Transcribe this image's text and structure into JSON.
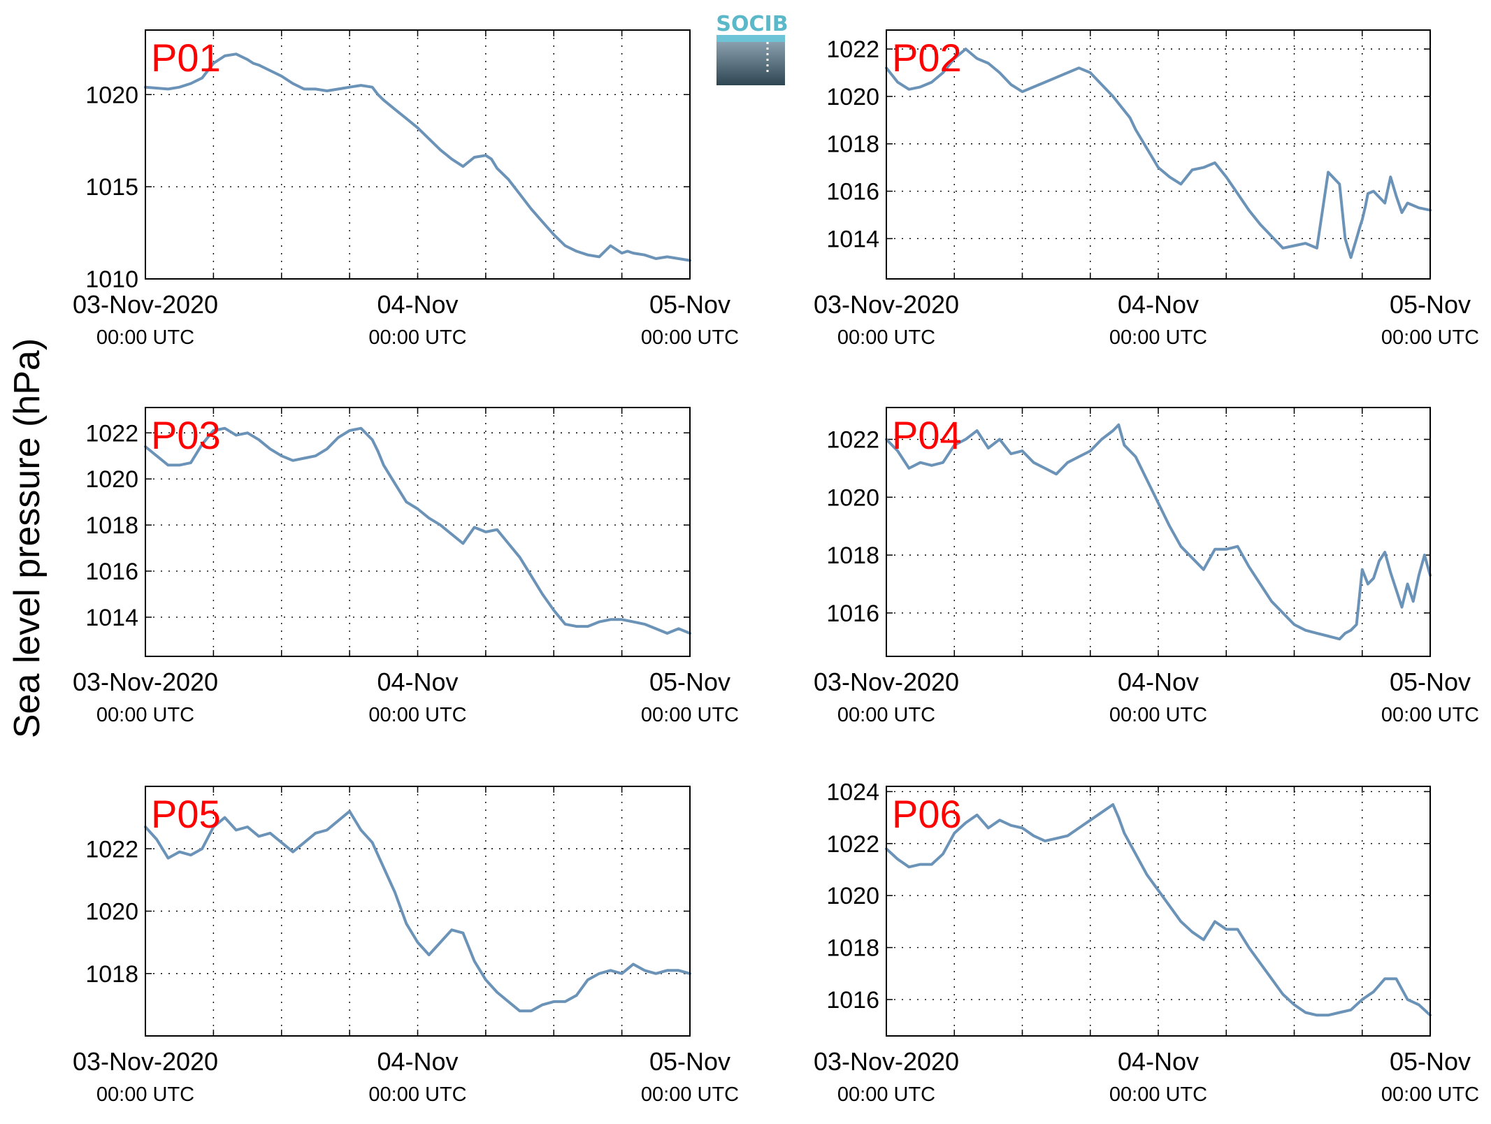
{
  "figure": {
    "ylabel": "Sea level pressure (hPa)",
    "logo_text": "SOCIB",
    "line_color": "#6b93b8",
    "label_color": "#ff0000"
  },
  "chart_data": [
    {
      "type": "line",
      "label": "P01",
      "x_unit": "hours since 03-Nov-2020 00:00 UTC",
      "xlim": [
        0,
        48
      ],
      "ylim": [
        1010,
        1023.5
      ],
      "yticks": [
        1010,
        1015,
        1020
      ],
      "xtick_labels": [
        [
          "03-Nov-2020",
          "00:00 UTC"
        ],
        [
          "04-Nov",
          "00:00 UTC"
        ],
        [
          "05-Nov",
          "00:00 UTC"
        ]
      ],
      "grid": true,
      "x": [
        0,
        2,
        3,
        4,
        5,
        6,
        7,
        8,
        9,
        9.5,
        10,
        11,
        12,
        13,
        14,
        15,
        16,
        17,
        18,
        19,
        20,
        20.5,
        21,
        22,
        23,
        24,
        25,
        26,
        27,
        28,
        29,
        30,
        30.5,
        31,
        32,
        33,
        34,
        35,
        36,
        37,
        38,
        39,
        40,
        41,
        42,
        42.5,
        43,
        44,
        45,
        46,
        47,
        48
      ],
      "y": [
        1020.4,
        1020.3,
        1020.4,
        1020.6,
        1020.9,
        1021.7,
        1022.1,
        1022.2,
        1021.9,
        1021.7,
        1021.6,
        1021.3,
        1021.0,
        1020.6,
        1020.3,
        1020.3,
        1020.2,
        1020.3,
        1020.4,
        1020.5,
        1020.4,
        1020.0,
        1019.7,
        1019.2,
        1018.7,
        1018.2,
        1017.6,
        1017.0,
        1016.5,
        1016.1,
        1016.6,
        1016.7,
        1016.5,
        1016.0,
        1015.4,
        1014.6,
        1013.8,
        1013.1,
        1012.4,
        1011.8,
        1011.5,
        1011.3,
        1011.2,
        1011.8,
        1011.4,
        1011.5,
        1011.4,
        1011.3,
        1011.1,
        1011.2,
        1011.1,
        1011.0
      ]
    },
    {
      "type": "line",
      "label": "P02",
      "x_unit": "hours since 03-Nov-2020 00:00 UTC",
      "xlim": [
        0,
        48
      ],
      "ylim": [
        1012.3,
        1022.8
      ],
      "yticks": [
        1014,
        1016,
        1018,
        1020,
        1022
      ],
      "xtick_labels": [
        [
          "03-Nov-2020",
          "00:00 UTC"
        ],
        [
          "04-Nov",
          "00:00 UTC"
        ],
        [
          "05-Nov",
          "00:00 UTC"
        ]
      ],
      "grid": true,
      "x": [
        0,
        1,
        2,
        3,
        4,
        5,
        6,
        7,
        8,
        9,
        10,
        11,
        12,
        13,
        14,
        15,
        16,
        17,
        18,
        19,
        20,
        21,
        21.5,
        22,
        23,
        24,
        25,
        26,
        27,
        28,
        29,
        30,
        31,
        32,
        33,
        34,
        35,
        36,
        37,
        38,
        39,
        40,
        40.5,
        41,
        41.5,
        41.8,
        42,
        42.3,
        42.5,
        43,
        44,
        44.5,
        45,
        45.5,
        46,
        46.5,
        47,
        48
      ],
      "y": [
        1021.2,
        1020.6,
        1020.3,
        1020.4,
        1020.6,
        1021.0,
        1021.6,
        1022.0,
        1021.6,
        1021.4,
        1021.0,
        1020.5,
        1020.2,
        1020.4,
        1020.6,
        1020.8,
        1021.0,
        1021.2,
        1021.0,
        1020.5,
        1020.0,
        1019.4,
        1019.1,
        1018.6,
        1017.8,
        1017.0,
        1016.6,
        1016.3,
        1016.9,
        1017.0,
        1017.2,
        1016.6,
        1015.9,
        1015.2,
        1014.6,
        1014.1,
        1013.6,
        1013.7,
        1013.8,
        1013.6,
        1016.8,
        1016.3,
        1014.0,
        1013.2,
        1014.0,
        1014.5,
        1014.8,
        1015.4,
        1015.9,
        1016.0,
        1015.5,
        1016.6,
        1015.8,
        1015.1,
        1015.5,
        1015.4,
        1015.3,
        1015.2
      ]
    },
    {
      "type": "line",
      "label": "P03",
      "x_unit": "hours since 03-Nov-2020 00:00 UTC",
      "xlim": [
        0,
        48
      ],
      "ylim": [
        1012.3,
        1023.1
      ],
      "yticks": [
        1014,
        1016,
        1018,
        1020,
        1022
      ],
      "xtick_labels": [
        [
          "03-Nov-2020",
          "00:00 UTC"
        ],
        [
          "04-Nov",
          "00:00 UTC"
        ],
        [
          "05-Nov",
          "00:00 UTC"
        ]
      ],
      "grid": true,
      "x": [
        0,
        1,
        2,
        3,
        4,
        5,
        6,
        7,
        8,
        9,
        10,
        11,
        12,
        13,
        14,
        15,
        16,
        17,
        18,
        19,
        20,
        20.5,
        21,
        22,
        23,
        24,
        25,
        26,
        27,
        28,
        29,
        30,
        31,
        32,
        33,
        34,
        35,
        36,
        37,
        38,
        39,
        40,
        41,
        42,
        43,
        44,
        45,
        46,
        47,
        48
      ],
      "y": [
        1021.4,
        1021.0,
        1020.6,
        1020.6,
        1020.7,
        1021.5,
        1022.1,
        1022.2,
        1021.9,
        1022.0,
        1021.7,
        1021.3,
        1021.0,
        1020.8,
        1020.9,
        1021.0,
        1021.3,
        1021.8,
        1022.1,
        1022.2,
        1021.7,
        1021.2,
        1020.6,
        1019.8,
        1019.0,
        1018.7,
        1018.3,
        1018.0,
        1017.6,
        1017.2,
        1017.9,
        1017.7,
        1017.8,
        1017.2,
        1016.6,
        1015.8,
        1015.0,
        1014.3,
        1013.7,
        1013.6,
        1013.6,
        1013.8,
        1013.9,
        1013.9,
        1013.8,
        1013.7,
        1013.5,
        1013.3,
        1013.5,
        1013.3
      ]
    },
    {
      "type": "line",
      "label": "P04",
      "x_unit": "hours since 03-Nov-2020 00:00 UTC",
      "xlim": [
        0,
        48
      ],
      "ylim": [
        1014.5,
        1023.1
      ],
      "yticks": [
        1016,
        1018,
        1020,
        1022
      ],
      "xtick_labels": [
        [
          "03-Nov-2020",
          "00:00 UTC"
        ],
        [
          "04-Nov",
          "00:00 UTC"
        ],
        [
          "05-Nov",
          "00:00 UTC"
        ]
      ],
      "grid": true,
      "x": [
        0,
        1,
        2,
        3,
        4,
        5,
        6,
        7,
        8,
        9,
        10,
        11,
        12,
        13,
        14,
        15,
        16,
        17,
        18,
        19,
        20,
        20.5,
        21,
        22,
        23,
        24,
        25,
        26,
        27,
        28,
        29,
        30,
        31,
        32,
        33,
        34,
        35,
        36,
        37,
        38,
        39,
        40,
        40.5,
        41,
        41.5,
        42,
        42.5,
        43,
        43.5,
        44,
        44.5,
        45,
        45.5,
        46,
        46.5,
        47,
        47.5,
        48
      ],
      "y": [
        1022.0,
        1021.6,
        1021.0,
        1021.2,
        1021.1,
        1021.2,
        1021.8,
        1022.0,
        1022.3,
        1021.7,
        1022.0,
        1021.5,
        1021.6,
        1021.2,
        1021.0,
        1020.8,
        1021.2,
        1021.4,
        1021.6,
        1022.0,
        1022.3,
        1022.5,
        1021.8,
        1021.4,
        1020.6,
        1019.8,
        1019.0,
        1018.3,
        1017.9,
        1017.5,
        1018.2,
        1018.2,
        1018.3,
        1017.6,
        1017.0,
        1016.4,
        1016.0,
        1015.6,
        1015.4,
        1015.3,
        1015.2,
        1015.1,
        1015.3,
        1015.4,
        1015.6,
        1017.5,
        1017.0,
        1017.2,
        1017.8,
        1018.1,
        1017.4,
        1016.8,
        1016.2,
        1017.0,
        1016.4,
        1017.3,
        1018.0,
        1017.3
      ]
    },
    {
      "type": "line",
      "label": "P05",
      "x_unit": "hours since 03-Nov-2020 00:00 UTC",
      "xlim": [
        0,
        48
      ],
      "ylim": [
        1016.0,
        1024.0
      ],
      "yticks": [
        1018,
        1020,
        1022
      ],
      "xtick_labels": [
        [
          "03-Nov-2020",
          "00:00 UTC"
        ],
        [
          "04-Nov",
          "00:00 UTC"
        ],
        [
          "05-Nov",
          "00:00 UTC"
        ]
      ],
      "grid": true,
      "x": [
        0,
        1,
        2,
        3,
        4,
        5,
        6,
        7,
        8,
        9,
        10,
        11,
        12,
        13,
        14,
        15,
        16,
        17,
        18,
        19,
        20,
        21,
        22,
        23,
        24,
        25,
        26,
        27,
        28,
        29,
        30,
        31,
        32,
        33,
        34,
        35,
        36,
        37,
        38,
        39,
        40,
        41,
        42,
        43,
        44,
        45,
        46,
        47,
        48
      ],
      "y": [
        1022.7,
        1022.3,
        1021.7,
        1021.9,
        1021.8,
        1022.0,
        1022.7,
        1023.0,
        1022.6,
        1022.7,
        1022.4,
        1022.5,
        1022.2,
        1021.9,
        1022.2,
        1022.5,
        1022.6,
        1022.9,
        1023.2,
        1022.6,
        1022.2,
        1021.4,
        1020.6,
        1019.6,
        1019.0,
        1018.6,
        1019.0,
        1019.4,
        1019.3,
        1018.4,
        1017.8,
        1017.4,
        1017.1,
        1016.8,
        1016.8,
        1017.0,
        1017.1,
        1017.1,
        1017.3,
        1017.8,
        1018.0,
        1018.1,
        1018.0,
        1018.3,
        1018.1,
        1018.0,
        1018.1,
        1018.1,
        1018.0
      ]
    },
    {
      "type": "line",
      "label": "P06",
      "x_unit": "hours since 03-Nov-2020 00:00 UTC",
      "xlim": [
        0,
        48
      ],
      "ylim": [
        1014.6,
        1024.2
      ],
      "yticks": [
        1016,
        1018,
        1020,
        1022,
        1024
      ],
      "xtick_labels": [
        [
          "03-Nov-2020",
          "00:00 UTC"
        ],
        [
          "04-Nov",
          "00:00 UTC"
        ],
        [
          "05-Nov",
          "00:00 UTC"
        ]
      ],
      "grid": true,
      "x": [
        0,
        1,
        2,
        3,
        4,
        5,
        6,
        7,
        8,
        9,
        10,
        11,
        12,
        13,
        14,
        15,
        16,
        17,
        18,
        19,
        20,
        20.5,
        21,
        22,
        23,
        24,
        25,
        26,
        27,
        28,
        29,
        30,
        31,
        32,
        33,
        34,
        35,
        36,
        37,
        38,
        39,
        40,
        41,
        42,
        43,
        44,
        45,
        46,
        47,
        48
      ],
      "y": [
        1021.8,
        1021.4,
        1021.1,
        1021.2,
        1021.2,
        1021.6,
        1022.4,
        1022.8,
        1023.1,
        1022.6,
        1022.9,
        1022.7,
        1022.6,
        1022.3,
        1022.1,
        1022.2,
        1022.3,
        1022.6,
        1022.9,
        1023.2,
        1023.5,
        1023.0,
        1022.4,
        1021.6,
        1020.8,
        1020.2,
        1019.6,
        1019.0,
        1018.6,
        1018.3,
        1019.0,
        1018.7,
        1018.7,
        1018.0,
        1017.4,
        1016.8,
        1016.2,
        1015.8,
        1015.5,
        1015.4,
        1015.4,
        1015.5,
        1015.6,
        1016.0,
        1016.3,
        1016.8,
        1016.8,
        1016.0,
        1015.8,
        1015.4
      ]
    }
  ]
}
